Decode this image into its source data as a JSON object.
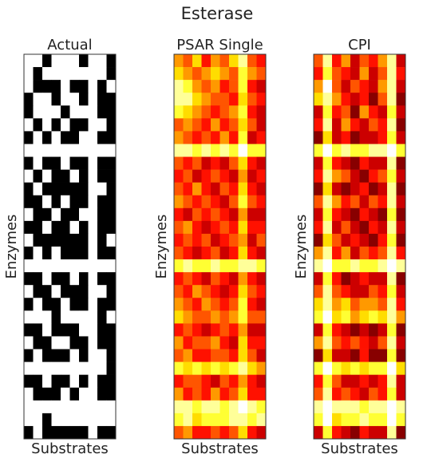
{
  "title": "Esterase",
  "chart_data": [
    {
      "type": "heatmap",
      "title": "Actual",
      "xlabel": "Substrates",
      "ylabel": "Enzymes",
      "colormap": "gray",
      "z": [
        [
          1,
          1,
          0,
          1,
          1,
          1,
          0,
          1,
          1,
          0
        ],
        [
          1,
          0,
          1,
          1,
          1,
          1,
          1,
          1,
          1,
          0
        ],
        [
          1,
          0,
          0,
          0,
          1,
          0,
          0,
          1,
          0,
          1
        ],
        [
          0,
          1,
          1,
          0,
          1,
          1,
          0,
          1,
          0,
          0
        ],
        [
          0,
          1,
          1,
          1,
          0,
          1,
          1,
          1,
          0,
          0
        ],
        [
          1,
          0,
          1,
          0,
          1,
          0,
          0,
          1,
          1,
          0
        ],
        [
          0,
          1,
          0,
          1,
          0,
          0,
          1,
          1,
          0,
          0
        ],
        [
          1,
          1,
          1,
          1,
          1,
          1,
          1,
          1,
          1,
          1
        ],
        [
          0,
          1,
          0,
          0,
          1,
          0,
          0,
          1,
          0,
          0
        ],
        [
          1,
          0,
          1,
          0,
          0,
          1,
          0,
          1,
          0,
          0
        ],
        [
          0,
          1,
          0,
          0,
          0,
          0,
          0,
          1,
          1,
          0
        ],
        [
          0,
          0,
          1,
          0,
          1,
          0,
          0,
          1,
          0,
          0
        ],
        [
          1,
          0,
          0,
          1,
          0,
          0,
          1,
          1,
          0,
          0
        ],
        [
          0,
          0,
          1,
          0,
          0,
          1,
          0,
          1,
          0,
          0
        ],
        [
          1,
          0,
          0,
          0,
          0,
          0,
          0,
          1,
          0,
          1
        ],
        [
          0,
          1,
          0,
          1,
          0,
          0,
          0,
          1,
          0,
          0
        ],
        [
          1,
          1,
          1,
          1,
          1,
          1,
          1,
          1,
          1,
          1
        ],
        [
          0,
          0,
          1,
          0,
          0,
          1,
          0,
          1,
          0,
          0
        ],
        [
          1,
          0,
          0,
          1,
          0,
          0,
          0,
          1,
          1,
          0
        ],
        [
          0,
          1,
          0,
          0,
          1,
          0,
          0,
          1,
          0,
          0
        ],
        [
          1,
          1,
          1,
          0,
          1,
          1,
          1,
          1,
          0,
          1
        ],
        [
          0,
          0,
          1,
          0,
          0,
          0,
          1,
          1,
          0,
          0
        ],
        [
          1,
          0,
          0,
          1,
          1,
          0,
          0,
          1,
          0,
          0
        ],
        [
          0,
          1,
          0,
          0,
          0,
          1,
          0,
          1,
          1,
          0
        ],
        [
          1,
          1,
          1,
          1,
          1,
          1,
          1,
          1,
          1,
          0
        ],
        [
          0,
          0,
          1,
          0,
          0,
          1,
          0,
          1,
          0,
          0
        ],
        [
          1,
          0,
          0,
          0,
          1,
          0,
          1,
          1,
          0,
          0
        ],
        [
          1,
          1,
          1,
          1,
          1,
          1,
          1,
          1,
          1,
          1
        ],
        [
          1,
          1,
          0,
          1,
          1,
          1,
          1,
          1,
          1,
          1
        ],
        [
          0,
          1,
          0,
          0,
          0,
          0,
          0,
          1,
          0,
          0
        ]
      ]
    },
    {
      "type": "heatmap",
      "title": "PSAR Single",
      "xlabel": "Substrates",
      "ylabel": "Enzymes",
      "colormap": "hot",
      "z": [
        [
          0.6,
          0.5,
          0.7,
          0.4,
          0.6,
          0.5,
          0.7,
          0.9,
          0.5,
          0.4
        ],
        [
          0.7,
          0.6,
          0.5,
          0.6,
          0.7,
          0.6,
          0.5,
          0.8,
          0.6,
          0.5
        ],
        [
          0.9,
          0.8,
          0.6,
          0.5,
          0.6,
          0.4,
          0.5,
          0.8,
          0.4,
          0.3
        ],
        [
          0.9,
          0.9,
          0.7,
          0.6,
          0.5,
          0.5,
          0.4,
          0.7,
          0.5,
          0.4
        ],
        [
          0.8,
          0.7,
          0.6,
          0.5,
          0.4,
          0.5,
          0.6,
          0.8,
          0.4,
          0.3
        ],
        [
          0.5,
          0.6,
          0.5,
          0.4,
          0.6,
          0.4,
          0.5,
          0.7,
          0.5,
          0.3
        ],
        [
          0.6,
          0.5,
          0.4,
          0.5,
          0.4,
          0.6,
          0.4,
          0.8,
          0.3,
          0.4
        ],
        [
          0.9,
          0.9,
          0.8,
          0.9,
          0.8,
          0.9,
          0.8,
          1.0,
          0.8,
          0.8
        ],
        [
          0.5,
          0.4,
          0.5,
          0.3,
          0.4,
          0.3,
          0.5,
          0.7,
          0.4,
          0.3
        ],
        [
          0.4,
          0.5,
          0.3,
          0.4,
          0.5,
          0.4,
          0.3,
          0.6,
          0.3,
          0.4
        ],
        [
          0.5,
          0.4,
          0.6,
          0.4,
          0.3,
          0.5,
          0.4,
          0.7,
          0.4,
          0.3
        ],
        [
          0.6,
          0.5,
          0.4,
          0.5,
          0.4,
          0.3,
          0.5,
          0.8,
          0.5,
          0.4
        ],
        [
          0.4,
          0.3,
          0.5,
          0.4,
          0.5,
          0.4,
          0.3,
          0.6,
          0.3,
          0.3
        ],
        [
          0.5,
          0.6,
          0.4,
          0.3,
          0.4,
          0.5,
          0.4,
          0.7,
          0.4,
          0.4
        ],
        [
          0.4,
          0.5,
          0.4,
          0.5,
          0.3,
          0.4,
          0.5,
          0.6,
          0.3,
          0.5
        ],
        [
          0.5,
          0.4,
          0.3,
          0.4,
          0.5,
          0.3,
          0.4,
          0.7,
          0.4,
          0.3
        ],
        [
          0.8,
          0.9,
          0.8,
          0.8,
          0.9,
          0.8,
          0.8,
          0.9,
          0.9,
          0.8
        ],
        [
          0.4,
          0.5,
          0.4,
          0.3,
          0.5,
          0.4,
          0.3,
          0.6,
          0.4,
          0.3
        ],
        [
          0.5,
          0.4,
          0.6,
          0.5,
          0.4,
          0.3,
          0.4,
          0.7,
          0.5,
          0.4
        ],
        [
          0.6,
          0.5,
          0.4,
          0.6,
          0.5,
          0.4,
          0.5,
          0.8,
          0.4,
          0.3
        ],
        [
          0.7,
          0.6,
          0.5,
          0.5,
          0.6,
          0.5,
          0.6,
          0.8,
          0.5,
          0.5
        ],
        [
          0.4,
          0.5,
          0.4,
          0.3,
          0.4,
          0.5,
          0.4,
          0.6,
          0.3,
          0.3
        ],
        [
          0.6,
          0.4,
          0.5,
          0.5,
          0.6,
          0.4,
          0.3,
          0.7,
          0.4,
          0.4
        ],
        [
          0.5,
          0.6,
          0.4,
          0.4,
          0.5,
          0.5,
          0.4,
          0.7,
          0.5,
          0.3
        ],
        [
          0.8,
          0.7,
          0.8,
          0.7,
          0.8,
          0.7,
          0.8,
          0.9,
          0.7,
          0.6
        ],
        [
          0.4,
          0.5,
          0.5,
          0.4,
          0.3,
          0.5,
          0.4,
          0.6,
          0.4,
          0.3
        ],
        [
          0.6,
          0.4,
          0.5,
          0.4,
          0.6,
          0.4,
          0.5,
          0.7,
          0.4,
          0.4
        ],
        [
          0.9,
          0.9,
          0.8,
          0.9,
          0.9,
          0.8,
          0.9,
          1.0,
          0.9,
          0.8
        ],
        [
          0.8,
          0.9,
          0.7,
          0.8,
          0.8,
          0.8,
          0.9,
          0.9,
          0.8,
          0.9
        ],
        [
          0.5,
          0.6,
          0.4,
          0.4,
          0.5,
          0.4,
          0.5,
          0.7,
          0.4,
          0.3
        ]
      ]
    },
    {
      "type": "heatmap",
      "title": "CPI",
      "xlabel": "Substrates",
      "ylabel": "Enzymes",
      "colormap": "hot",
      "z": [
        [
          0.5,
          0.9,
          0.4,
          0.6,
          0.3,
          0.5,
          0.4,
          0.6,
          0.9,
          0.3
        ],
        [
          0.4,
          0.8,
          0.5,
          0.4,
          0.3,
          0.6,
          0.3,
          0.5,
          0.9,
          0.4
        ],
        [
          0.6,
          1.0,
          0.5,
          0.3,
          0.5,
          0.4,
          0.3,
          0.6,
          0.9,
          0.3
        ],
        [
          0.7,
          0.9,
          0.6,
          0.4,
          0.3,
          0.4,
          0.2,
          0.5,
          0.9,
          0.2
        ],
        [
          0.3,
          0.8,
          0.4,
          0.5,
          0.2,
          0.6,
          0.4,
          0.3,
          0.8,
          0.3
        ],
        [
          0.4,
          0.9,
          0.3,
          0.6,
          0.4,
          0.3,
          0.5,
          0.4,
          0.9,
          0.2
        ],
        [
          0.2,
          0.7,
          0.3,
          0.4,
          0.2,
          0.3,
          0.3,
          0.4,
          0.8,
          0.3
        ],
        [
          0.8,
          1.0,
          0.8,
          0.9,
          0.8,
          0.8,
          0.9,
          0.9,
          1.0,
          0.8
        ],
        [
          0.3,
          0.8,
          0.4,
          0.3,
          0.2,
          0.4,
          0.3,
          0.3,
          0.9,
          0.2
        ],
        [
          0.4,
          0.9,
          0.6,
          0.5,
          0.3,
          0.2,
          0.4,
          0.5,
          0.8,
          0.3
        ],
        [
          0.2,
          0.7,
          0.3,
          0.2,
          0.3,
          0.4,
          0.2,
          0.3,
          0.9,
          0.2
        ],
        [
          0.5,
          0.9,
          0.6,
          0.4,
          0.5,
          0.3,
          0.5,
          0.4,
          0.9,
          0.3
        ],
        [
          0.3,
          0.8,
          0.4,
          0.3,
          0.2,
          0.4,
          0.3,
          0.2,
          0.8,
          0.2
        ],
        [
          0.4,
          0.9,
          0.3,
          0.5,
          0.3,
          0.2,
          0.4,
          0.3,
          0.9,
          0.3
        ],
        [
          0.2,
          0.7,
          0.5,
          0.3,
          0.4,
          0.3,
          0.2,
          0.4,
          0.8,
          0.2
        ],
        [
          0.6,
          0.9,
          0.4,
          0.6,
          0.3,
          0.5,
          0.4,
          0.5,
          0.9,
          0.4
        ],
        [
          0.9,
          1.0,
          0.8,
          0.8,
          0.9,
          0.8,
          0.8,
          0.9,
          1.0,
          0.9
        ],
        [
          0.3,
          0.8,
          0.4,
          0.2,
          0.3,
          0.4,
          0.3,
          0.3,
          0.9,
          0.2
        ],
        [
          0.5,
          0.9,
          0.5,
          0.4,
          0.3,
          0.3,
          0.5,
          0.4,
          0.8,
          0.3
        ],
        [
          0.7,
          0.9,
          0.6,
          0.7,
          0.5,
          0.6,
          0.6,
          0.5,
          0.9,
          0.4
        ],
        [
          0.8,
          1.0,
          0.7,
          0.8,
          0.6,
          0.7,
          0.8,
          0.7,
          0.9,
          0.6
        ],
        [
          0.3,
          0.8,
          0.4,
          0.3,
          0.2,
          0.3,
          0.2,
          0.3,
          0.8,
          0.2
        ],
        [
          0.6,
          0.9,
          0.5,
          0.4,
          0.5,
          0.4,
          0.3,
          0.5,
          0.9,
          0.3
        ],
        [
          0.2,
          0.7,
          0.3,
          0.3,
          0.2,
          0.4,
          0.2,
          0.2,
          0.8,
          0.2
        ],
        [
          0.8,
          1.0,
          0.8,
          0.7,
          0.8,
          0.7,
          0.8,
          0.8,
          1.0,
          0.7
        ],
        [
          0.4,
          0.8,
          0.5,
          0.3,
          0.3,
          0.4,
          0.3,
          0.4,
          0.9,
          0.3
        ],
        [
          0.5,
          0.9,
          0.4,
          0.5,
          0.4,
          0.3,
          0.5,
          0.4,
          0.8,
          0.3
        ],
        [
          0.9,
          1.0,
          0.9,
          0.9,
          0.9,
          0.8,
          0.9,
          0.9,
          1.0,
          0.9
        ],
        [
          0.8,
          1.0,
          0.7,
          0.8,
          0.8,
          0.9,
          0.8,
          0.8,
          1.0,
          0.8
        ],
        [
          0.3,
          0.8,
          0.4,
          0.3,
          0.2,
          0.4,
          0.3,
          0.3,
          0.9,
          0.2
        ]
      ]
    }
  ]
}
